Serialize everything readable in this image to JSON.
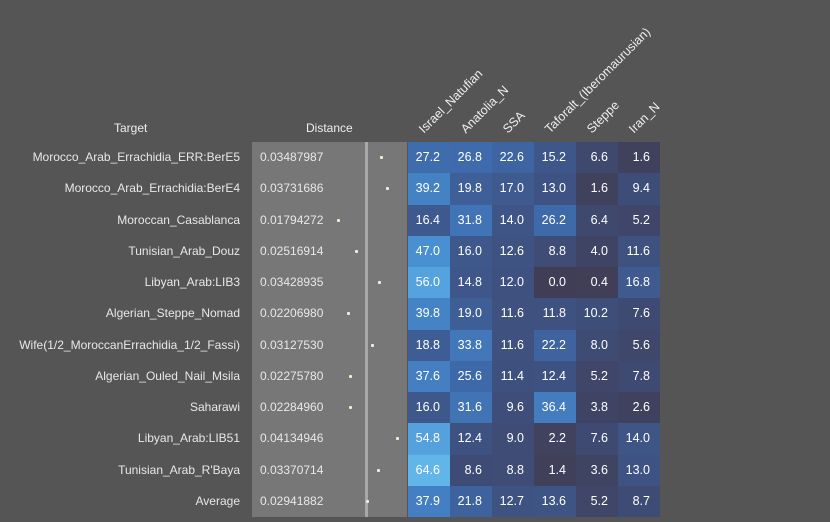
{
  "chart_data": {
    "type": "heatmap",
    "headers": {
      "target": "Target",
      "distance": "Distance"
    },
    "columns": [
      "Israel_Natufian",
      "Anatolia_N",
      "SSA",
      "Taforalt_(Iberomaurusian)",
      "Steppe",
      "Iran_N"
    ],
    "rows": [
      {
        "target": "Morocco_Arab_Errachidia_ERR:BerE5",
        "distance": "0.03487987",
        "values": [
          27.2,
          26.8,
          22.6,
          15.2,
          6.6,
          1.6
        ]
      },
      {
        "target": "Morocco_Arab_Errachidia:BerE4",
        "distance": "0.03731686",
        "values": [
          39.2,
          19.8,
          17.0,
          13.0,
          1.6,
          9.4
        ]
      },
      {
        "target": "Moroccan_Casablanca",
        "distance": "0.01794272",
        "values": [
          16.4,
          31.8,
          14.0,
          26.2,
          6.4,
          5.2
        ]
      },
      {
        "target": "Tunisian_Arab_Douz",
        "distance": "0.02516914",
        "values": [
          47.0,
          16.0,
          12.6,
          8.8,
          4.0,
          11.6
        ]
      },
      {
        "target": "Libyan_Arab:LIB3",
        "distance": "0.03428935",
        "values": [
          56.0,
          14.8,
          12.0,
          0.0,
          0.4,
          16.8
        ]
      },
      {
        "target": "Algerian_Steppe_Nomad",
        "distance": "0.02206980",
        "values": [
          39.8,
          19.0,
          11.6,
          11.8,
          10.2,
          7.6
        ]
      },
      {
        "target": "Wife(1/2_MoroccanErrachidia_1/2_Fassi)",
        "distance": "0.03127530",
        "values": [
          18.8,
          33.8,
          11.6,
          22.2,
          8.0,
          5.6
        ]
      },
      {
        "target": "Algerian_Ouled_Nail_Msila",
        "distance": "0.02275780",
        "values": [
          37.6,
          25.6,
          11.4,
          12.4,
          5.2,
          7.8
        ]
      },
      {
        "target": "Saharawi",
        "distance": "0.02284960",
        "values": [
          16.0,
          31.6,
          9.6,
          36.4,
          3.8,
          2.6
        ]
      },
      {
        "target": "Libyan_Arab:LIB51",
        "distance": "0.04134946",
        "values": [
          54.8,
          12.4,
          9.0,
          2.2,
          7.6,
          14.0
        ]
      },
      {
        "target": "Tunisian_Arab_R'Baya",
        "distance": "0.03370714",
        "values": [
          64.6,
          8.6,
          8.8,
          1.4,
          3.6,
          13.0
        ]
      },
      {
        "target": "Average",
        "distance": "0.02941882",
        "values": [
          37.9,
          21.8,
          12.7,
          13.6,
          5.2,
          8.7
        ]
      }
    ],
    "color_scale": {
      "min": 0,
      "max": 64.6,
      "low": "#403e56",
      "high": "#62b6ea"
    }
  }
}
